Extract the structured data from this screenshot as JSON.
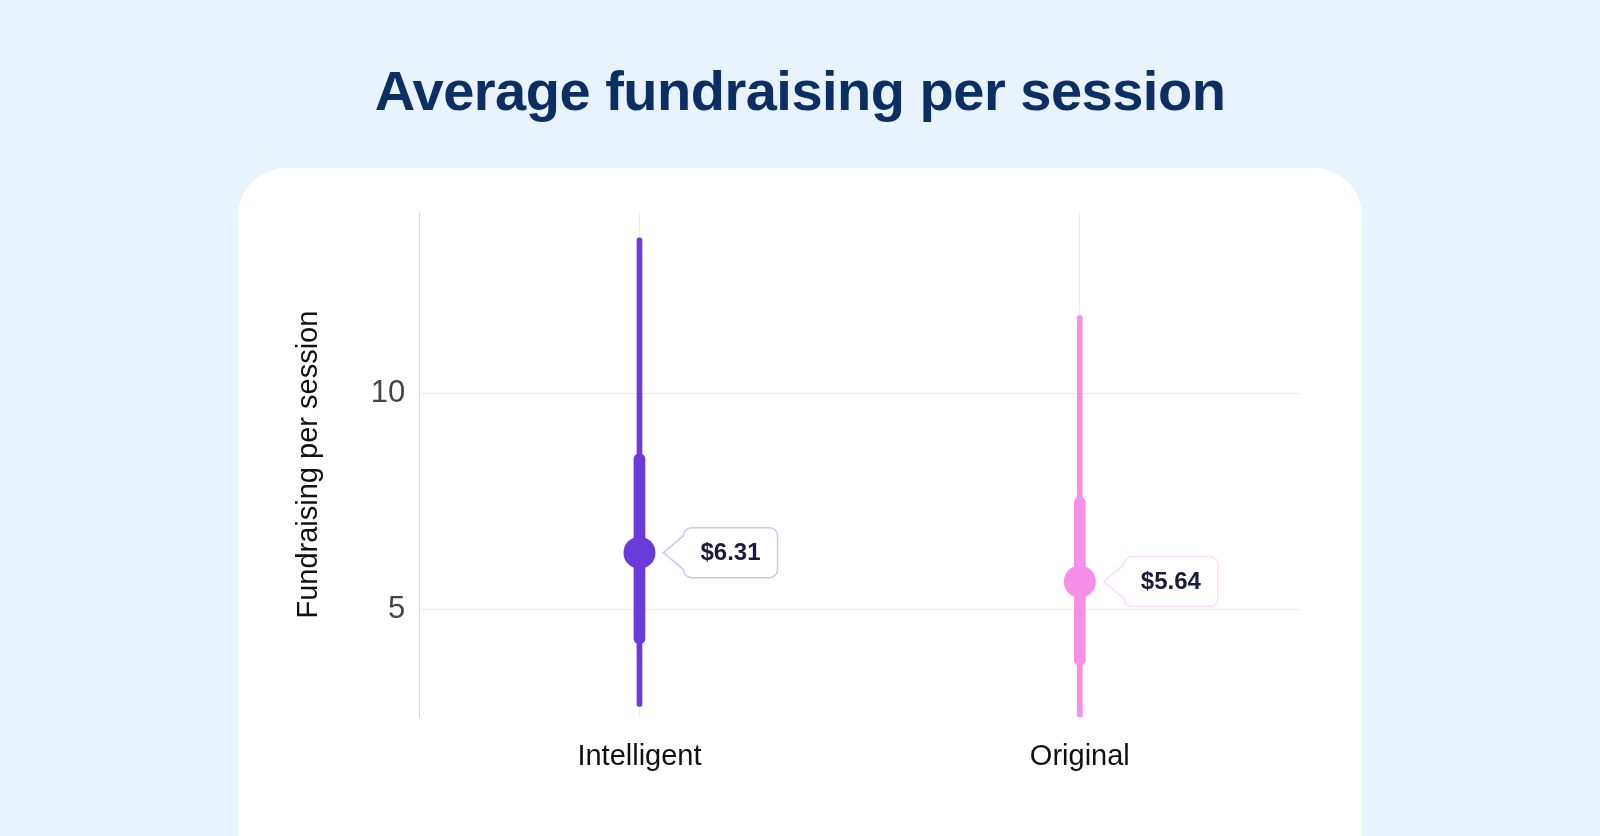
{
  "chart_data": {
    "type": "interval",
    "title": "Average fundraising per session",
    "y_label": "Fundraising per session",
    "categories": [
      "Intelligent",
      "Original"
    ],
    "values": [
      6.31,
      5.64
    ],
    "value_labels": [
      "$6.31",
      "$5.64"
    ],
    "colors": [
      "#6a3bdb",
      "#f78ee8"
    ],
    "inner_low": [
      4.2,
      3.7
    ],
    "inner_high": [
      8.6,
      7.6
    ],
    "outer_low": [
      2.75,
      2.5
    ],
    "outer_high": [
      13.6,
      11.8
    ],
    "ylim": [
      2.5,
      14.2
    ],
    "yticks": [
      5,
      10
    ],
    "grid": true,
    "data_labels": true
  }
}
